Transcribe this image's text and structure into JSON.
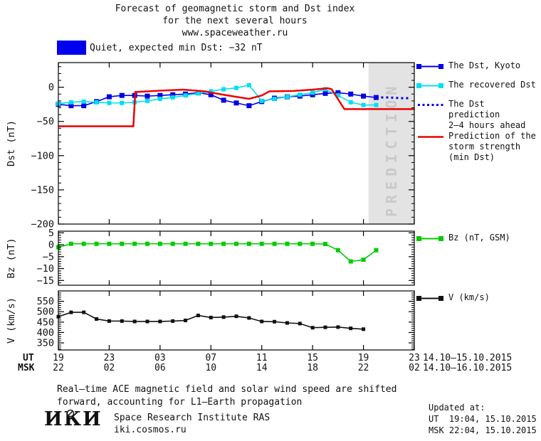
{
  "title": {
    "line1": "Forecast of geomagnetic storm and Dst index",
    "line2": "for the next several hours",
    "line3": "www.spaceweather.ru"
  },
  "status": {
    "label": "Quiet, expected min Dst: −32 nT"
  },
  "colors": {
    "kyoto": "#0000e6",
    "recovered": "#00dff0",
    "prediction": "#0000e6",
    "storm": "#ee0000",
    "bz": "#00cc00",
    "v": "#111111",
    "status_box": "#0000f0",
    "band": "#e3e3e3",
    "band_text": "#c9c9c9",
    "axis": "#000000"
  },
  "band": {
    "label": "PREDICTION",
    "start_h": 24.4,
    "end_h": 28
  },
  "legend": {
    "items": [
      {
        "label": "The Dst, Kyoto"
      },
      {
        "label": "The recovered Dst"
      },
      {
        "label": "The Dst prediction\n2—4 hours ahead"
      },
      {
        "label": "Prediction of the\nstorm strength\n(min Dst)"
      },
      {
        "label": "Bz (nT, GSM)"
      },
      {
        "label": "V (km/s)"
      }
    ]
  },
  "xaxis": {
    "ut_label": "UT",
    "msk_label": "MSK",
    "ticks_h": [
      0,
      4,
      8,
      12,
      16,
      20,
      24,
      28
    ],
    "ut_ticks": [
      "19",
      "23",
      "03",
      "07",
      "11",
      "15",
      "19",
      "23"
    ],
    "msk_ticks": [
      "22",
      "02",
      "06",
      "10",
      "14",
      "18",
      "22",
      "02"
    ],
    "ut_dates": "14.10—15.10.2015",
    "msk_dates": "14.10—16.10.2015"
  },
  "footnote": {
    "line1": "Real—time ACE magnetic field and solar wind speed are shifted",
    "line2": "forward, accounting for L1—Earth propagation"
  },
  "updated": {
    "title": "Updated at:",
    "ut": "UT  19:04, 15.10.2015",
    "msk": "MSK 22:04, 15.10.2015"
  },
  "logo": {
    "text": "ИКИ",
    "org": "Space Research Institute RAS",
    "site": "iki.cosmos.ru"
  },
  "chart_data": [
    {
      "type": "line",
      "panel": "dst",
      "ylabel": "Dst (nT)",
      "xlim": [
        0,
        28
      ],
      "ylim": [
        -200,
        36
      ],
      "yticks": [
        0,
        -50,
        -100,
        -150,
        -200
      ],
      "yminor": 10,
      "series": [
        {
          "name": "The Dst, Kyoto",
          "color_key": "kyoto",
          "marker": 7,
          "width": 1.6,
          "x": [
            0,
            1,
            2,
            3,
            4,
            5,
            6,
            7,
            8,
            9,
            10,
            11,
            12,
            13,
            14,
            15,
            16,
            17,
            18,
            19,
            20,
            21,
            22,
            23,
            24,
            25
          ],
          "y": [
            -25,
            -27,
            -27,
            -21,
            -14,
            -12,
            -12,
            -13,
            -12,
            -11,
            -10,
            -8,
            -11,
            -19,
            -23,
            -27,
            -21,
            -16,
            -14,
            -13,
            -11,
            -9,
            -8,
            -10,
            -13,
            -15
          ]
        },
        {
          "name": "The recovered Dst",
          "color_key": "recovered",
          "marker": 6,
          "width": 1.6,
          "x": [
            0,
            1,
            2,
            3,
            4,
            5,
            6,
            7,
            8,
            9,
            10,
            11,
            12,
            13,
            14,
            15,
            16,
            17,
            18,
            19,
            20,
            21,
            22,
            23,
            24,
            25
          ],
          "y": [
            -24,
            -22,
            -21,
            -22,
            -23,
            -23,
            -22,
            -20,
            -17,
            -15,
            -12,
            -9,
            -6,
            -3,
            -1,
            3,
            -20,
            -17,
            -14,
            -11,
            -8,
            -3,
            -12,
            -22,
            -26,
            -26
          ]
        },
        {
          "name": "The Dst prediction 2—4 hours ahead",
          "color_key": "prediction",
          "dash": "3 4",
          "width": 3,
          "x": [
            25,
            26,
            27,
            27.6
          ],
          "y": [
            -15,
            -15,
            -16,
            -16
          ]
        },
        {
          "name": "Prediction of the storm strength (min Dst)",
          "color_key": "storm",
          "width": 2.5,
          "x": [
            0,
            5.9,
            6.05,
            8,
            9.8,
            11.5,
            13,
            15,
            16,
            16.6,
            18.5,
            20,
            21.2,
            21.5,
            22.5,
            28
          ],
          "y": [
            -57,
            -57,
            -7,
            -5,
            -3.5,
            -6,
            -11,
            -17,
            -12,
            -6,
            -5.5,
            -3.5,
            -1.5,
            -3,
            -32,
            -32
          ]
        }
      ]
    },
    {
      "type": "line",
      "panel": "bz",
      "ylabel": "Bz (nT)",
      "xlim": [
        0,
        28
      ],
      "ylim": [
        -17,
        5.7
      ],
      "yticks": [
        5,
        0,
        -5,
        -10,
        -15
      ],
      "yminor": 1,
      "series": [
        {
          "name": "Bz (nT, GSM)",
          "color_key": "bz",
          "marker": 6,
          "width": 1.6,
          "x": [
            0,
            1,
            2,
            3,
            4,
            5,
            6,
            7,
            8,
            9,
            10,
            11,
            12,
            13,
            14,
            15,
            16,
            17,
            18,
            19,
            20,
            21,
            22,
            23,
            24,
            25
          ],
          "y": [
            -1,
            0.4,
            0.4,
            0.4,
            0.4,
            0.4,
            0.4,
            0.4,
            0.4,
            0.4,
            0.4,
            0.4,
            0.4,
            0.4,
            0.4,
            0.4,
            0.4,
            0.4,
            0.4,
            0.4,
            0.4,
            0.3,
            -2.3,
            -7,
            -6.3,
            -2.3
          ]
        }
      ]
    },
    {
      "type": "line",
      "panel": "v",
      "ylabel": "V (km/s)",
      "xlim": [
        0,
        28
      ],
      "ylim": [
        316,
        600
      ],
      "yticks": [
        550,
        500,
        450,
        400,
        350
      ],
      "yminor": 10,
      "series": [
        {
          "name": "V (km/s)",
          "color_key": "v",
          "marker": 5,
          "width": 1.6,
          "x": [
            0,
            1,
            2,
            3,
            4,
            5,
            6,
            7,
            8,
            9,
            10,
            11,
            12,
            13,
            14,
            15,
            16,
            17,
            18,
            19,
            20,
            21,
            22,
            23,
            24
          ],
          "y": [
            476,
            497,
            497,
            465,
            455,
            455,
            453,
            453,
            453,
            455,
            458,
            482,
            472,
            474,
            478,
            470,
            453,
            452,
            446,
            443,
            423,
            425,
            426,
            420,
            416
          ]
        }
      ]
    }
  ]
}
